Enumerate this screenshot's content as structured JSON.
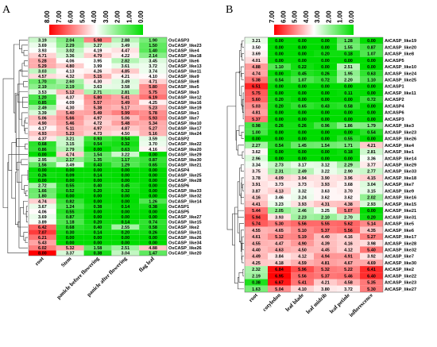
{
  "chart_data": [
    {
      "type": "heatmap",
      "panel": "A",
      "legend_ticks": [
        "8.00",
        "7.00",
        "6.00",
        "5.00",
        "4.00",
        "3.00",
        "2.00",
        "1.00",
        "0.00"
      ],
      "color_range": [
        0,
        8
      ],
      "colors": {
        "high": "#ff0000",
        "mid": "#ffffff",
        "low": "#00dd00"
      },
      "columns": [
        "root",
        "Stem",
        "panicle before flowering",
        "panicle after flowering",
        "flag leaf"
      ],
      "rows": [
        {
          "gene": "OsCASP3",
          "values": [
            3.19,
            2.04,
            5.98,
            2.88,
            1.9
          ]
        },
        {
          "gene": "OsCASP_like23",
          "values": [
            3.69,
            2.29,
            3.27,
            3.49,
            1.5
          ]
        },
        {
          "gene": "OsCASP_like4",
          "values": [
            3.93,
            3.02,
            4.19,
            4.47,
            1.4
          ]
        },
        {
          "gene": "OsCASP_like18",
          "values": [
            4.71,
            3.36,
            4.79,
            4.22,
            2.14
          ]
        },
        {
          "gene": "OsCASP_like6",
          "values": [
            5.28,
            4.06,
            3.95,
            2.82,
            3.45
          ]
        },
        {
          "gene": "OsCASP_like13",
          "values": [
            5.29,
            4.8,
            3.99,
            3.61,
            3.72
          ]
        },
        {
          "gene": "OsCASP_like11",
          "values": [
            3.03,
            4.13,
            4.26,
            4.85,
            3.74
          ]
        },
        {
          "gene": "OsCASP_like9",
          "values": [
            4.57,
            4.32,
            5.15,
            4.21,
            4.1
          ]
        },
        {
          "gene": "OsCASP_like8",
          "values": [
            1.7,
            2.6,
            4.3,
            3.49,
            4.71
          ]
        },
        {
          "gene": "OsCASP_like5",
          "values": [
            2.19,
            2.19,
            3.63,
            3.58,
            5.8
          ]
        },
        {
          "gene": "OsCASP_like3",
          "values": [
            3.53,
            5.12,
            2.71,
            2.81,
            5.75
          ]
        },
        {
          "gene": "OsCASP_like12",
          "values": [
            1.2,
            4.37,
            5.8,
            5.41,
            6.19
          ]
        },
        {
          "gene": "OsCASP_like16",
          "values": [
            0.85,
            4.09,
            5.57,
            5.49,
            4.25
          ]
        },
        {
          "gene": "OsCASP_like19",
          "values": [
            2.49,
            4.3,
            5.38,
            5.17,
            5.23
          ]
        },
        {
          "gene": "OsCASP_like1",
          "values": [
            3.39,
            5.4,
            5.49,
            5.99,
            5.78
          ]
        },
        {
          "gene": "OsCASP_like7",
          "values": [
            5.06,
            5.66,
            4.97,
            5.06,
            5.93
          ]
        },
        {
          "gene": "OsCASP_like10",
          "values": [
            4.9,
            5.46,
            4.72,
            5.48,
            5.34
          ]
        },
        {
          "gene": "OsCASP_like17",
          "values": [
            4.17,
            5.11,
            4.97,
            4.87,
            5.27
          ]
        },
        {
          "gene": "OsCASP_like24",
          "values": [
            4.93,
            5.23,
            4.73,
            4.5,
            5.16
          ]
        },
        {
          "gene": "OsCASP2",
          "values": [
            4.37,
            3.21,
            0.93,
            0.54,
            3.59
          ]
        },
        {
          "gene": "OsCASP_like22",
          "values": [
            0.68,
            3.15,
            0.54,
            0.32,
            3.7
          ]
        },
        {
          "gene": "OsCASP_like20",
          "values": [
            0.86,
            2.79,
            0.0,
            0.63,
            4.16
          ]
        },
        {
          "gene": "OsCASP_like29",
          "values": [
            0.0,
            4.74,
            1.54,
            3.22,
            0.0
          ]
        },
        {
          "gene": "OsCASP_like30",
          "values": [
            2.95,
            2.17,
            1.35,
            1.17,
            0.87
          ]
        },
        {
          "gene": "OsCASP_like21",
          "values": [
            1.56,
            3.49,
            0.43,
            1.29,
            0.65
          ]
        },
        {
          "gene": "OsCASP4",
          "values": [
            0.0,
            0.0,
            0.0,
            0.0,
            0.0
          ]
        },
        {
          "gene": "OsCASP_like25",
          "values": [
            0.26,
            0.09,
            0.14,
            0.0,
            0.0
          ]
        },
        {
          "gene": "OsCASP_like28",
          "values": [
            0.0,
            0.0,
            0.0,
            0.0,
            0.0
          ]
        },
        {
          "gene": "OsCASP6",
          "values": [
            2.72,
            0.55,
            0.4,
            0.45,
            0.0
          ]
        },
        {
          "gene": "OsCASP_like33",
          "values": [
            1.66,
            0.52,
            0.2,
            0.32,
            0.0
          ]
        },
        {
          "gene": "OsCASP_like32",
          "values": [
            1.8,
            0.0,
            0.0,
            0.0,
            0.0
          ]
        },
        {
          "gene": "OsCASP_like14",
          "values": [
            4.74,
            0.82,
            0.0,
            0.0,
            1.26
          ]
        },
        {
          "gene": "OsCASP1",
          "values": [
            3.67,
            1.24,
            0.38,
            0.14,
            0.38
          ]
        },
        {
          "gene": "OsCASP5",
          "values": [
            4.06,
            0.55,
            0.0,
            0.0,
            0.0
          ]
        },
        {
          "gene": "OsCASP_like27",
          "values": [
            3.69,
            0.87,
            0.0,
            0.0,
            0.0
          ]
        },
        {
          "gene": "OsCASP_like15",
          "values": [
            3.89,
            1.18,
            0.2,
            0.14,
            0.74
          ]
        },
        {
          "gene": "OsCASP_like2",
          "values": [
            6.42,
            0.68,
            0.4,
            2.55,
            0.58
          ]
        },
        {
          "gene": "OsCASP_like31",
          "values": [
            7.07,
            0.3,
            0.14,
            0.2,
            0.26
          ]
        },
        {
          "gene": "OsCASP_like26",
          "values": [
            6.21,
            0.0,
            0.0,
            0.0,
            0.0
          ]
        },
        {
          "gene": "OsCASP_like34",
          "values": [
            5.43,
            0.0,
            0.0,
            0.0,
            0.0
          ]
        },
        {
          "gene": "OsCASP_like26",
          "values": [
            6.02,
            5.32,
            1.58,
            2.51,
            4.88
          ]
        },
        {
          "gene": "OsCASP_like20",
          "values": [
            8.0,
            3.37,
            0.38,
            3.04,
            1.47
          ]
        }
      ]
    },
    {
      "type": "heatmap",
      "panel": "B",
      "legend_ticks": [
        "7.00",
        "6.00",
        "5.00",
        "4.00",
        "3.00",
        "2.00",
        "1.00",
        "0.00"
      ],
      "color_range": [
        0,
        7
      ],
      "colors": {
        "high": "#ff0000",
        "mid": "#ffffff",
        "low": "#00dd00"
      },
      "columns": [
        "root",
        "cotyledon",
        "leaf blade",
        "leaf midrib",
        "leaf petiole",
        "inflorescence"
      ],
      "rows": [
        {
          "gene": "AtCASP_like19",
          "values": [
            3.21,
            0.0,
            0.0,
            0.0,
            1.28,
            0.0
          ]
        },
        {
          "gene": "AtCASP_like20",
          "values": [
            3.5,
            0.0,
            0.0,
            0.0,
            1.55,
            0.87
          ]
        },
        {
          "gene": "AtCASP_like8",
          "values": [
            3.69,
            0.0,
            0.0,
            0.2,
            0.18,
            1.07
          ]
        },
        {
          "gene": "AtCASP5",
          "values": [
            4.01,
            0.0,
            0.0,
            0.0,
            0.0,
            0.0
          ]
        },
        {
          "gene": "AtCASP_like10",
          "values": [
            4.88,
            1.1,
            0.22,
            0.0,
            2.51,
            0.0
          ]
        },
        {
          "gene": "AtCASP_like24",
          "values": [
            4.74,
            0.0,
            0.45,
            0.26,
            1.95,
            0.63
          ]
        },
        {
          "gene": "AtCASP_like25",
          "values": [
            5.38,
            0.54,
            1.07,
            0.72,
            2.2,
            1.1
          ]
        },
        {
          "gene": "AtCASP1",
          "values": [
            6.51,
            0.0,
            0.0,
            0.0,
            0.0,
            0.0
          ]
        },
        {
          "gene": "AtCASP_like11",
          "values": [
            5.75,
            0.0,
            0.0,
            0.0,
            0.11,
            0.0
          ]
        },
        {
          "gene": "AtCASP2",
          "values": [
            5.6,
            0.2,
            0.0,
            0.0,
            0.0,
            0.72
          ]
        },
        {
          "gene": "AtCASP4",
          "values": [
            5.03,
            0.2,
            0.65,
            0.43,
            0.58,
            0.0
          ]
        },
        {
          "gene": "AtCASP6",
          "values": [
            4.81,
            0.0,
            0.0,
            0.0,
            0.0,
            0.0
          ]
        },
        {
          "gene": "AtCASP3",
          "values": [
            5.37,
            0.0,
            0.0,
            0.0,
            0.0,
            0.0
          ]
        },
        {
          "gene": "AtCASP_like3",
          "values": [
            0.98,
            0.26,
            0.26,
            0.96,
            1.86,
            1.79
          ]
        },
        {
          "gene": "AtCASP_like23",
          "values": [
            1.0,
            0.0,
            0.0,
            0.0,
            0.0,
            0.54
          ]
        },
        {
          "gene": "AtCASP_like26",
          "values": [
            0.0,
            0.0,
            0.0,
            0.0,
            0.55,
            0.0
          ]
        },
        {
          "gene": "AtCASP_like4",
          "values": [
            2.27,
            0.54,
            1.45,
            1.54,
            1.71,
            4.21
          ]
        },
        {
          "gene": "AtCASP_like1",
          "values": [
            3.62,
            0.0,
            0.0,
            0.0,
            0.18,
            2.81
          ]
        },
        {
          "gene": "AtCASP_like14",
          "values": [
            2.96,
            0.0,
            0.0,
            0.0,
            0.0,
            3.36
          ]
        },
        {
          "gene": "AtCASP_like29",
          "values": [
            3.34,
            2.73,
            3.17,
            3.12,
            2.29,
            3.77
          ]
        },
        {
          "gene": "AtCASP_like33",
          "values": [
            3.75,
            2.31,
            2.49,
            3.22,
            2.9,
            2.77
          ]
        },
        {
          "gene": "AtCASP_like18",
          "values": [
            3.78,
            4.09,
            3.94,
            3.9,
            3.96,
            4.15
          ]
        },
        {
          "gene": "AtCASP_like7",
          "values": [
            3.91,
            3.73,
            3.73,
            3.93,
            3.68,
            3.04
          ]
        },
        {
          "gene": "AtCASP_like9",
          "values": [
            3.87,
            4.13,
            3.32,
            3.63,
            3.7,
            3.15
          ]
        },
        {
          "gene": "AtCASP_like16",
          "values": [
            4.16,
            3.46,
            3.24,
            3.62,
            3.62,
            2.02
          ]
        },
        {
          "gene": "AtCASP_like15",
          "values": [
            4.41,
            3.23,
            3.93,
            4.31,
            4.38,
            2.93
          ]
        },
        {
          "gene": "AtCASP_like21",
          "values": [
            5.44,
            2.05,
            2.46,
            3.25,
            5.07,
            0.0
          ]
        },
        {
          "gene": "AtCASP_like31",
          "values": [
            5.94,
            3.93,
            2.23,
            2.1,
            2.7,
            0.2
          ]
        },
        {
          "gene": "AtCASP_like5",
          "values": [
            5.74,
            5.3,
            5.56,
            5.55,
            5.62,
            5.14
          ]
        },
        {
          "gene": "AtCASP_like6",
          "values": [
            4.55,
            4.65,
            5.1,
            5.37,
            5.56,
            4.35
          ]
        },
        {
          "gene": "AtCASP_like17",
          "values": [
            4.61,
            5.12,
            5.19,
            4.4,
            4.16,
            5.27
          ]
        },
        {
          "gene": "AtCASP_like28",
          "values": [
            4.55,
            4.47,
            4.9,
            4.39,
            4.16,
            3.98
          ]
        },
        {
          "gene": "AtCASP_like32",
          "values": [
            4.4,
            4.63,
            4.5,
            4.45,
            4.12,
            5.4
          ]
        },
        {
          "gene": "AtCASP_like7",
          "values": [
            4.49,
            3.84,
            4.12,
            4.94,
            4.91,
            3.92
          ]
        },
        {
          "gene": "AtCASP_like30",
          "values": [
            4.25,
            4.18,
            4.59,
            4.81,
            4.67,
            4.69
          ]
        },
        {
          "gene": "AtCASP_like2",
          "values": [
            2.32,
            6.84,
            5.96,
            5.32,
            5.22,
            6.41
          ]
        },
        {
          "gene": "AtCASP_like22",
          "values": [
            2.19,
            6.95,
            5.56,
            5.37,
            5.46,
            6.4
          ]
        },
        {
          "gene": "AtCASP_like23",
          "values": [
            0.38,
            6.67,
            5.41,
            4.21,
            4.58,
            5.35
          ]
        },
        {
          "gene": "AtCASP_like27",
          "values": [
            1.63,
            5.04,
            4.1,
            3.8,
            3.72,
            5.3
          ]
        }
      ]
    }
  ]
}
